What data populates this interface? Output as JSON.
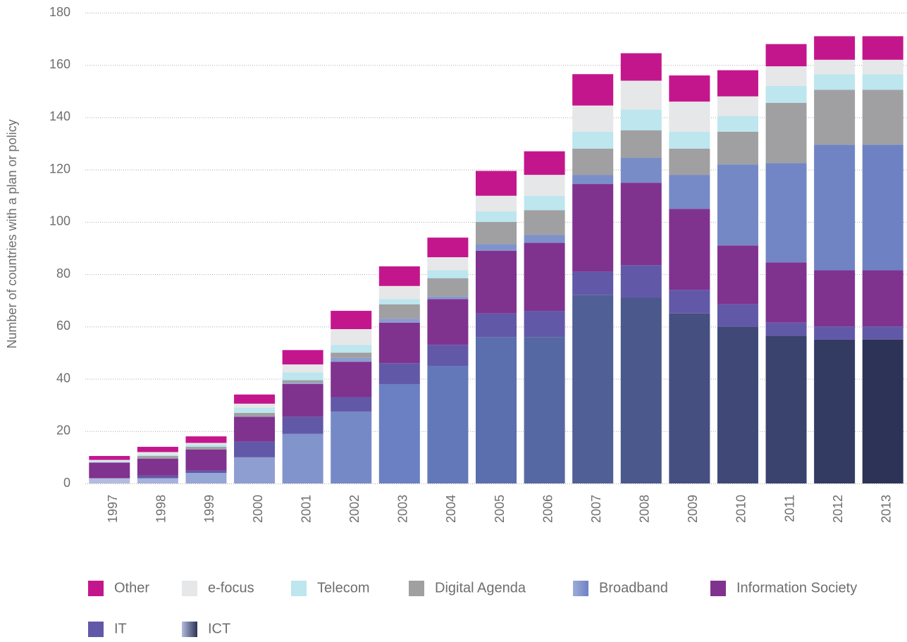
{
  "chart_data": {
    "type": "stacked_bar",
    "y_label": "Number of countries with a plan or policy",
    "categories": [
      "1997",
      "1998",
      "1999",
      "2000",
      "2001",
      "2002",
      "2003",
      "2004",
      "2005",
      "2006",
      "2007",
      "2008",
      "2009",
      "2010",
      "2011",
      "2012",
      "2013"
    ],
    "ylim": [
      0,
      180
    ],
    "yticks": [
      0,
      20,
      40,
      60,
      80,
      100,
      120,
      140,
      160,
      180
    ],
    "grid": true,
    "series": [
      {
        "name": "ICT",
        "colors": [
          "#b2bcdf",
          "#a6b2db",
          "#96a6d5",
          "#8e9ed1",
          "#8294cc",
          "#7689c7",
          "#6b80c2",
          "#6378b9",
          "#5b6fae",
          "#5668a3",
          "#505f96",
          "#4a588b",
          "#454f80",
          "#3f4877",
          "#3a426e",
          "#333b63",
          "#2c3357"
        ],
        "values": [
          2,
          2,
          4,
          10,
          19,
          27.5,
          38,
          45,
          56,
          56,
          72,
          71,
          65,
          60,
          56.5,
          55,
          55
        ]
      },
      {
        "name": "IT",
        "color": "#6258a8",
        "values": [
          0,
          1,
          1,
          6,
          6.5,
          5.5,
          8,
          8,
          9,
          10,
          9,
          12.5,
          9,
          8.5,
          5,
          5,
          5
        ]
      },
      {
        "name": "Information Society",
        "color": "#80328f",
        "values": [
          6,
          6.5,
          8,
          9.5,
          12.5,
          13.5,
          15.5,
          17.5,
          24,
          26,
          33.5,
          31.5,
          31,
          22.5,
          23,
          21.5,
          21.5
        ]
      },
      {
        "name": "Broadband",
        "colors": [
          "#9eacd8",
          "#9aa9d6",
          "#97a6d5",
          "#94a4d3",
          "#90a1d2",
          "#8c9ed0",
          "#889bcf",
          "#8498cd",
          "#8094cb",
          "#7d91ca",
          "#7a8fc9",
          "#788cc8",
          "#768ac7",
          "#7488c6",
          "#7286c5",
          "#7084c4",
          "#6e82c3"
        ],
        "values": [
          0,
          0,
          0,
          0,
          0.5,
          1.5,
          1.5,
          1,
          2.5,
          3,
          3.5,
          9.5,
          13,
          31,
          38,
          48,
          48
        ]
      },
      {
        "name": "Digital Agenda",
        "color": "#a0a0a2",
        "values": [
          0,
          1,
          1,
          1.5,
          1,
          2,
          5.5,
          7,
          8.5,
          9.5,
          10,
          10.5,
          10,
          12.5,
          23,
          21,
          21
        ]
      },
      {
        "name": "Telecom",
        "color": "#bde6ee",
        "values": [
          0.5,
          0.5,
          1,
          2,
          3,
          3,
          2,
          3,
          4,
          5.5,
          6.5,
          8,
          6.5,
          6,
          6.5,
          6,
          6
        ]
      },
      {
        "name": "e-focus",
        "color": "#e6e7e8",
        "values": [
          0.5,
          1,
          0.5,
          1.5,
          3,
          6,
          5,
          5,
          6,
          8,
          10,
          11,
          11.5,
          7.5,
          7.5,
          5.5,
          5.5
        ]
      },
      {
        "name": "Other",
        "color": "#c4168c",
        "values": [
          1.5,
          2,
          2.5,
          3.5,
          5.5,
          7,
          7.5,
          7.5,
          9.5,
          9,
          12,
          10.5,
          10,
          10,
          8.5,
          9,
          9
        ]
      }
    ]
  }
}
